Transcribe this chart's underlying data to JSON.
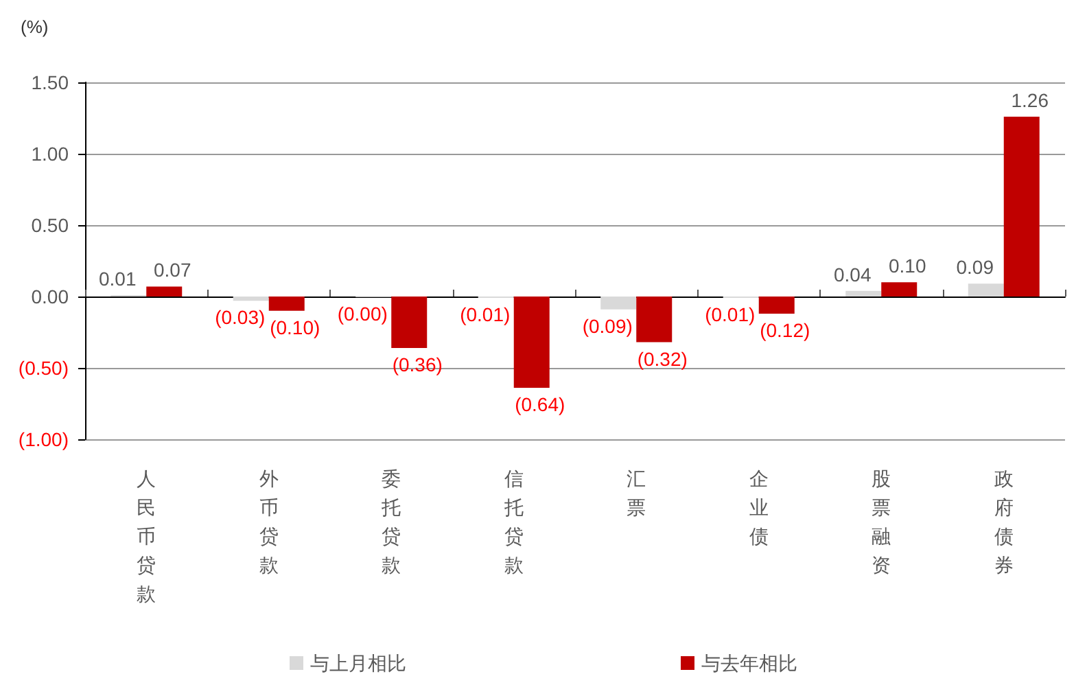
{
  "chart_data": {
    "type": "bar",
    "ylabel": "(%)",
    "categories": [
      "人民币贷款",
      "外币贷款",
      "委托贷款",
      "信托贷款",
      "汇票",
      "企业债",
      "股票融资",
      "政府债券"
    ],
    "series": [
      {
        "name": "与上月相比",
        "color": "#d9d9d9",
        "values": [
          0.01,
          -0.03,
          -0.004,
          -0.01,
          -0.09,
          -0.01,
          0.04,
          0.09
        ],
        "value_labels": [
          "0.01",
          "(0.03)",
          "(0.00)",
          "(0.01)",
          "(0.09)",
          "(0.01)",
          "0.04",
          "0.09"
        ]
      },
      {
        "name": "与去年相比",
        "color": "#c00000",
        "values": [
          0.07,
          -0.1,
          -0.36,
          -0.64,
          -0.32,
          -0.12,
          0.1,
          1.26
        ],
        "value_labels": [
          "0.07",
          "(0.10)",
          "(0.36)",
          "(0.64)",
          "(0.32)",
          "(0.12)",
          "0.10",
          "1.26"
        ]
      }
    ],
    "ylim": [
      -1,
      1.5
    ],
    "yticks": [
      {
        "value": -1,
        "label": "(1.00)"
      },
      {
        "value": -0.5,
        "label": "(0.50)"
      },
      {
        "value": 0,
        "label": "0.00"
      },
      {
        "value": 0.5,
        "label": "0.50"
      },
      {
        "value": 1,
        "label": "1.00"
      },
      {
        "value": 1.5,
        "label": "1.50"
      }
    ],
    "grid": "y",
    "legend": "bottom"
  }
}
